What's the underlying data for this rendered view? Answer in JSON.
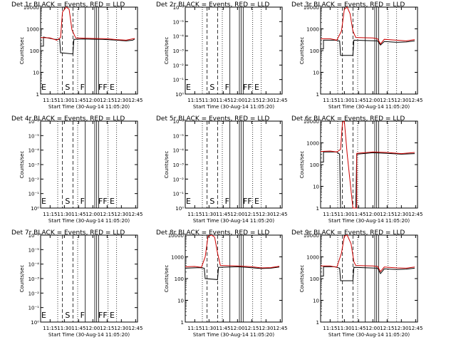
{
  "figure": {
    "background": "#ffffff"
  },
  "style": {
    "events_color": "#000000",
    "lld_color": "#cc0000",
    "axis_color": "#000000"
  },
  "shared": {
    "x_ticks": [
      "11:15",
      "11:30",
      "11:45",
      "12:00",
      "12:15",
      "12:30",
      "12:45"
    ],
    "xlabel": "Start Time (30-Aug-14 11:05:20)",
    "ylabel": "Counts/sec",
    "xlim": [
      "11:05",
      "12:47"
    ],
    "dotted_times": [
      "11:23",
      "11:44",
      "12:16",
      "12:25"
    ],
    "dashed_times": [
      "11:28",
      "11:39"
    ],
    "solid_times": [
      "11:52",
      "12:02",
      "12:04",
      "12:06"
    ],
    "flags": [
      {
        "label": "E",
        "time": "11:05"
      },
      {
        "label": "S",
        "time": "11:30"
      },
      {
        "label": "F",
        "time": "11:46"
      },
      {
        "label": "FF",
        "time": "12:05"
      },
      {
        "label": "E",
        "time": "12:17"
      }
    ]
  },
  "chart_data": [
    {
      "type": "line",
      "title": "Det 1r BLACK = Events, RED = LLD",
      "yscale": "log",
      "ylim": [
        1,
        10000
      ],
      "y_ticks": [
        "1",
        "10",
        "100",
        "1000",
        "10000"
      ],
      "show_flags": true,
      "series": [
        {
          "name": "Events",
          "color": "#000000",
          "points": [
            [
              "11:05",
              160
            ],
            [
              "11:08",
              160
            ],
            [
              "11:08",
              420
            ],
            [
              "11:20",
              330
            ],
            [
              "11:25",
              330
            ],
            [
              "11:26",
              80
            ],
            [
              "11:39",
              70
            ],
            [
              "11:40",
              330
            ],
            [
              "11:50",
              340
            ],
            [
              "12:10",
              330
            ],
            [
              "12:25",
              300
            ],
            [
              "12:35",
              280
            ],
            [
              "12:42",
              300
            ],
            [
              "12:44",
              340
            ]
          ]
        },
        {
          "name": "LLD",
          "color": "#cc0000",
          "points": [
            [
              "11:05",
              400
            ],
            [
              "11:15",
              380
            ],
            [
              "11:22",
              300
            ],
            [
              "11:26",
              400
            ],
            [
              "11:28",
              6000
            ],
            [
              "11:32",
              15000
            ],
            [
              "11:35",
              8000
            ],
            [
              "11:38",
              900
            ],
            [
              "11:42",
              380
            ],
            [
              "12:00",
              360
            ],
            [
              "12:15",
              350
            ],
            [
              "12:25",
              320
            ],
            [
              "12:35",
              300
            ],
            [
              "12:44",
              360
            ]
          ]
        }
      ]
    },
    {
      "type": "line",
      "title": "Det 2r BLACK = Events, RED = LLD",
      "yscale": "log",
      "ylim": [
        1,
        10000
      ],
      "y_ticks": [
        "10⁰",
        "10⁻¹",
        "10⁻²",
        "10⁻³",
        "10⁻⁴",
        "10⁻⁵",
        "10⁻⁶"
      ],
      "show_flags": true,
      "series": []
    },
    {
      "type": "line",
      "title": "Det 3r BLACK = Events, RED = LLD",
      "yscale": "log",
      "ylim": [
        1,
        10000
      ],
      "y_ticks": [
        "1",
        "10",
        "100",
        "1000",
        "10000"
      ],
      "show_flags": false,
      "series": [
        {
          "name": "Events",
          "color": "#000000",
          "points": [
            [
              "11:05",
              120
            ],
            [
              "11:08",
              120
            ],
            [
              "11:08",
              300
            ],
            [
              "11:20",
              300
            ],
            [
              "11:25",
              280
            ],
            [
              "11:26",
              60
            ],
            [
              "11:39",
              60
            ],
            [
              "11:40",
              300
            ],
            [
              "12:05",
              280
            ],
            [
              "12:08",
              180
            ],
            [
              "12:12",
              260
            ],
            [
              "12:25",
              240
            ],
            [
              "12:35",
              250
            ],
            [
              "12:44",
              280
            ]
          ]
        },
        {
          "name": "LLD",
          "color": "#cc0000",
          "points": [
            [
              "11:05",
              350
            ],
            [
              "11:15",
              350
            ],
            [
              "11:22",
              300
            ],
            [
              "11:27",
              800
            ],
            [
              "11:30",
              8000
            ],
            [
              "11:33",
              12000
            ],
            [
              "11:36",
              5000
            ],
            [
              "11:39",
              800
            ],
            [
              "11:42",
              400
            ],
            [
              "12:00",
              380
            ],
            [
              "12:05",
              350
            ],
            [
              "12:08",
              200
            ],
            [
              "12:12",
              330
            ],
            [
              "12:25",
              300
            ],
            [
              "12:35",
              280
            ],
            [
              "12:44",
              320
            ]
          ]
        }
      ]
    },
    {
      "type": "line",
      "title": "Det 4r BLACK = Events, RED = LLD",
      "yscale": "log",
      "ylim": [
        1,
        10000
      ],
      "y_ticks": [
        "10⁰",
        "10⁻¹",
        "10⁻²",
        "10⁻³",
        "10⁻⁴",
        "10⁻⁵",
        "10⁻⁶"
      ],
      "show_flags": true,
      "series": []
    },
    {
      "type": "line",
      "title": "Det 5r BLACK = Events, RED = LLD",
      "yscale": "log",
      "ylim": [
        1,
        10000
      ],
      "y_ticks": [
        "10⁰",
        "10⁻¹",
        "10⁻²",
        "10⁻³",
        "10⁻⁴",
        "10⁻⁵",
        "10⁻⁶"
      ],
      "show_flags": true,
      "series": []
    },
    {
      "type": "line",
      "title": "Det 6r BLACK = Events, RED = LLD",
      "yscale": "log",
      "ylim": [
        1,
        10000
      ],
      "y_ticks": [
        "1",
        "10",
        "100",
        "1000",
        "10000"
      ],
      "show_flags": false,
      "series": [
        {
          "name": "Events",
          "color": "#000000",
          "points": [
            [
              "11:05",
              130
            ],
            [
              "11:08",
              130
            ],
            [
              "11:08",
              380
            ],
            [
              "11:22",
              380
            ],
            [
              "11:25",
              300
            ],
            [
              "11:26",
              1
            ],
            [
              "11:42",
              1
            ],
            [
              "11:43",
              300
            ],
            [
              "12:00",
              350
            ],
            [
              "12:15",
              330
            ],
            [
              "12:30",
              300
            ],
            [
              "12:44",
              320
            ]
          ]
        },
        {
          "name": "LLD",
          "color": "#cc0000",
          "points": [
            [
              "11:05",
              400
            ],
            [
              "11:15",
              420
            ],
            [
              "11:22",
              380
            ],
            [
              "11:26",
              500
            ],
            [
              "11:28",
              9000
            ],
            [
              "11:30",
              15000
            ],
            [
              "11:33",
              300
            ],
            [
              "11:39",
              1
            ],
            [
              "11:43",
              1
            ],
            [
              "11:43",
              330
            ],
            [
              "12:00",
              380
            ],
            [
              "12:15",
              360
            ],
            [
              "12:30",
              320
            ],
            [
              "12:44",
              360
            ]
          ]
        }
      ]
    },
    {
      "type": "line",
      "title": "Det 7r BLACK = Events, RED = LLD",
      "yscale": "log",
      "ylim": [
        1,
        10000
      ],
      "y_ticks": [
        "10⁰",
        "10⁻¹",
        "10⁻²",
        "10⁻³",
        "10⁻⁴",
        "10⁻⁵",
        "10⁻⁶"
      ],
      "show_flags": true,
      "series": []
    },
    {
      "type": "line",
      "title": "Det 8r BLACK = Events, RED = LLD",
      "yscale": "log",
      "ylim": [
        1,
        10000
      ],
      "y_ticks": [
        "1",
        "10",
        "100",
        "1000",
        "10000"
      ],
      "show_flags": false,
      "series": [
        {
          "name": "Events",
          "color": "#000000",
          "points": [
            [
              "11:05",
              300
            ],
            [
              "11:20",
              320
            ],
            [
              "11:25",
              300
            ],
            [
              "11:26",
              100
            ],
            [
              "11:39",
              90
            ],
            [
              "11:40",
              330
            ],
            [
              "12:00",
              350
            ],
            [
              "12:10",
              330
            ],
            [
              "12:25",
              290
            ],
            [
              "12:35",
              300
            ],
            [
              "12:44",
              340
            ]
          ]
        },
        {
          "name": "LLD",
          "color": "#cc0000",
          "points": [
            [
              "11:05",
              350
            ],
            [
              "11:15",
              360
            ],
            [
              "11:22",
              330
            ],
            [
              "11:26",
              1000
            ],
            [
              "11:29",
              9000
            ],
            [
              "11:33",
              15000
            ],
            [
              "11:36",
              8000
            ],
            [
              "11:39",
              1500
            ],
            [
              "11:42",
              400
            ],
            [
              "12:00",
              380
            ],
            [
              "12:15",
              350
            ],
            [
              "12:25",
              310
            ],
            [
              "12:35",
              320
            ],
            [
              "12:44",
              370
            ]
          ]
        }
      ]
    },
    {
      "type": "line",
      "title": "Det 9r BLACK = Events, RED = LLD",
      "yscale": "log",
      "ylim": [
        1,
        10000
      ],
      "y_ticks": [
        "1",
        "10",
        "100",
        "1000",
        "10000"
      ],
      "show_flags": false,
      "series": [
        {
          "name": "Events",
          "color": "#000000",
          "points": [
            [
              "11:05",
              130
            ],
            [
              "11:08",
              130
            ],
            [
              "11:08",
              350
            ],
            [
              "11:20",
              350
            ],
            [
              "11:25",
              300
            ],
            [
              "11:26",
              80
            ],
            [
              "11:39",
              80
            ],
            [
              "11:40",
              330
            ],
            [
              "12:05",
              300
            ],
            [
              "12:08",
              170
            ],
            [
              "12:12",
              280
            ],
            [
              "12:25",
              260
            ],
            [
              "12:35",
              270
            ],
            [
              "12:44",
              300
            ]
          ]
        },
        {
          "name": "LLD",
          "color": "#cc0000",
          "points": [
            [
              "11:05",
              380
            ],
            [
              "11:15",
              380
            ],
            [
              "11:22",
              330
            ],
            [
              "11:27",
              1500
            ],
            [
              "11:30",
              9000
            ],
            [
              "11:33",
              15000
            ],
            [
              "11:37",
              4000
            ],
            [
              "11:40",
              600
            ],
            [
              "11:42",
              400
            ],
            [
              "12:00",
              380
            ],
            [
              "12:05",
              360
            ],
            [
              "12:08",
              210
            ],
            [
              "12:12",
              340
            ],
            [
              "12:25",
              310
            ],
            [
              "12:35",
              300
            ],
            [
              "12:44",
              340
            ]
          ]
        }
      ]
    }
  ]
}
